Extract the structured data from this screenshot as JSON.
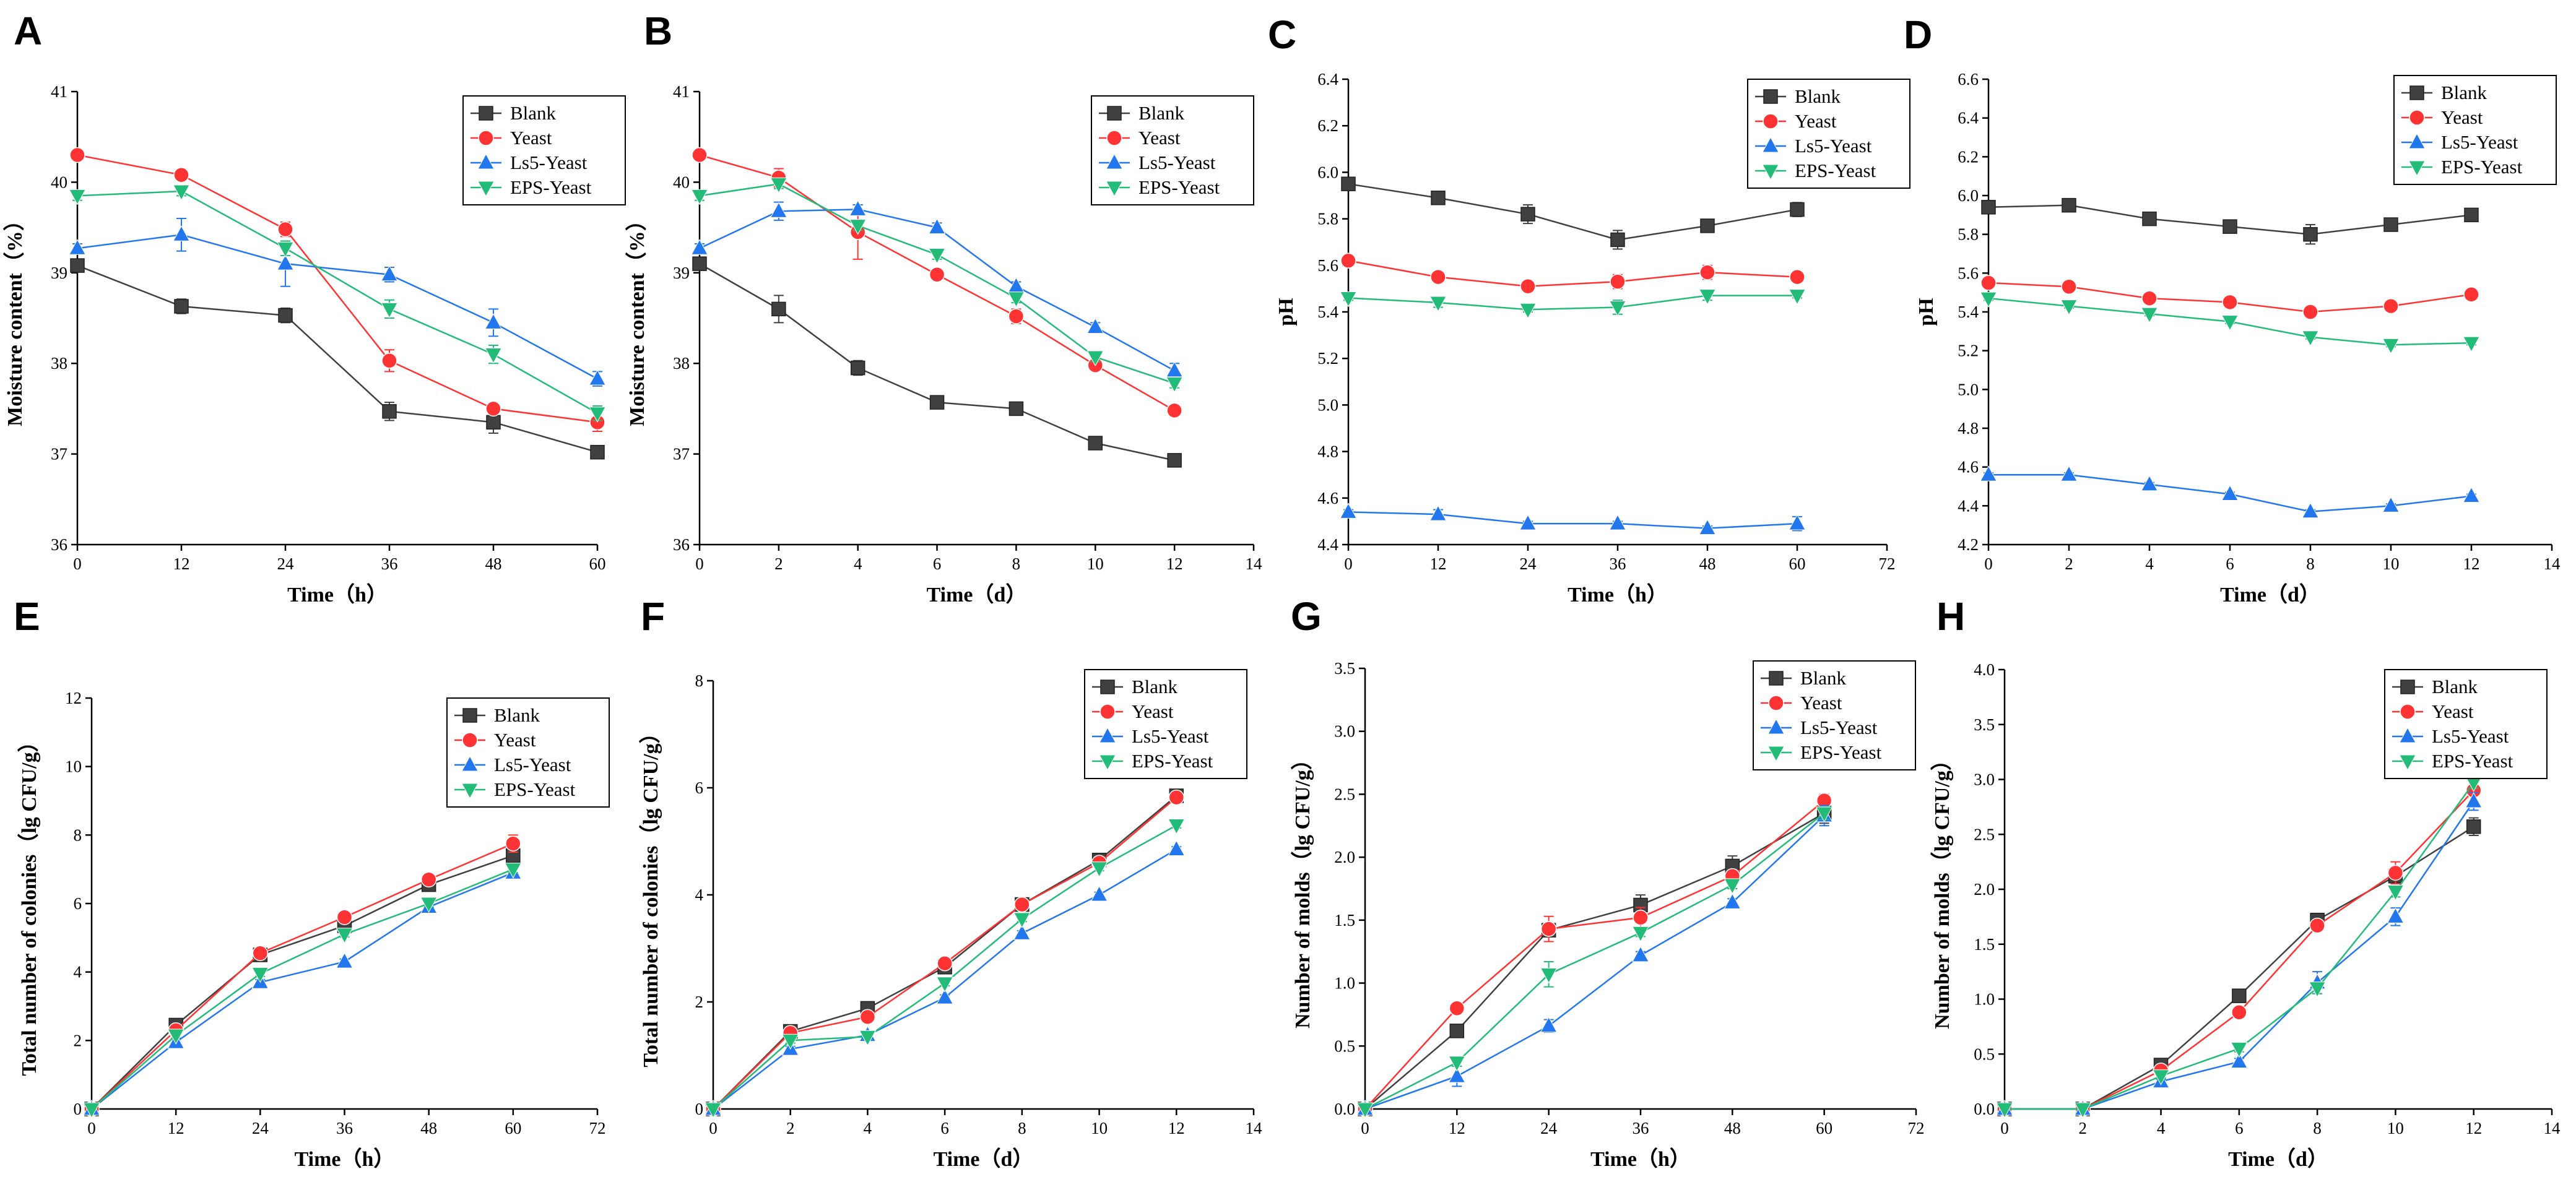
{
  "colors": {
    "Blank": "#404040",
    "Yeast": "#ff3333",
    "Ls5-Yeast": "#2277ee",
    "EPS-Yeast": "#22bb77"
  },
  "marker_shapes": {
    "Blank": "square",
    "Yeast": "circle",
    "Ls5-Yeast": "triangle-up",
    "EPS-Yeast": "triangle-down"
  },
  "chart_data": [
    {
      "panel": "A",
      "type": "line",
      "legend_position": "top-right",
      "xlabel": "Time（h）",
      "ylabel": "Moisture content（%）",
      "xlim": [
        0,
        60
      ],
      "ylim": [
        36,
        41
      ],
      "xticks": [
        0,
        12,
        24,
        36,
        48,
        60
      ],
      "yticks": [
        36,
        37,
        38,
        39,
        40,
        41
      ],
      "x": [
        0,
        12,
        24,
        36,
        48,
        60
      ],
      "series": [
        {
          "name": "Blank",
          "values": [
            39.08,
            38.63,
            38.53,
            37.47,
            37.35,
            37.02
          ],
          "errors": [
            0.05,
            0.08,
            0.08,
            0.1,
            0.12,
            0.04
          ]
        },
        {
          "name": "Yeast",
          "values": [
            40.3,
            40.08,
            39.48,
            38.03,
            37.5,
            37.35
          ],
          "errors": [
            0.05,
            0.05,
            0.08,
            0.12,
            0.05,
            0.1
          ]
        },
        {
          "name": "Ls5-Yeast",
          "values": [
            39.27,
            39.42,
            39.1,
            38.98,
            38.45,
            37.83
          ],
          "errors": [
            0.05,
            0.18,
            0.25,
            0.08,
            0.15,
            0.08
          ]
        },
        {
          "name": "EPS-Yeast",
          "values": [
            39.85,
            39.9,
            39.27,
            38.6,
            38.1,
            37.45
          ],
          "errors": [
            0.05,
            0.05,
            0.08,
            0.1,
            0.1,
            0.08
          ]
        }
      ]
    },
    {
      "panel": "B",
      "type": "line",
      "legend_position": "top-right",
      "xlabel": "Time（d）",
      "ylabel": "Moisture content（%）",
      "xlim": [
        0,
        14
      ],
      "ylim": [
        36,
        41
      ],
      "xticks": [
        0,
        2,
        4,
        6,
        8,
        10,
        12,
        14
      ],
      "yticks": [
        36,
        37,
        38,
        39,
        40,
        41
      ],
      "x": [
        0,
        2,
        4,
        6,
        8,
        10,
        12
      ],
      "series": [
        {
          "name": "Blank",
          "values": [
            39.1,
            38.6,
            37.95,
            37.57,
            37.5,
            37.12,
            36.93
          ],
          "errors": [
            0.05,
            0.15,
            0.08,
            0.05,
            0.03,
            0.03,
            0.03
          ]
        },
        {
          "name": "Yeast",
          "values": [
            40.3,
            40.05,
            39.45,
            38.98,
            38.52,
            37.98,
            37.48
          ],
          "errors": [
            0.05,
            0.1,
            0.3,
            0.05,
            0.08,
            0.05,
            0.03
          ]
        },
        {
          "name": "Ls5-Yeast",
          "values": [
            39.27,
            39.68,
            39.7,
            39.5,
            38.85,
            38.4,
            37.92
          ],
          "errors": [
            0.05,
            0.1,
            0.05,
            0.05,
            0.05,
            0.05,
            0.08
          ]
        },
        {
          "name": "EPS-Yeast",
          "values": [
            39.85,
            39.98,
            39.52,
            39.2,
            38.72,
            38.07,
            37.78
          ],
          "errors": [
            0.05,
            0.05,
            0.05,
            0.05,
            0.05,
            0.05,
            0.05
          ]
        }
      ]
    },
    {
      "panel": "C",
      "type": "line",
      "legend_position": "top-right",
      "xlabel": "Time（h）",
      "ylabel": "pH",
      "xlim": [
        0,
        72
      ],
      "ylim": [
        4.4,
        6.4
      ],
      "xticks": [
        0,
        12,
        24,
        36,
        48,
        60,
        72
      ],
      "yticks": [
        4.4,
        4.6,
        4.8,
        5.0,
        5.2,
        5.4,
        5.6,
        5.8,
        6.0,
        6.2,
        6.4
      ],
      "x": [
        0,
        12,
        24,
        36,
        48,
        60
      ],
      "series": [
        {
          "name": "Blank",
          "values": [
            5.95,
            5.89,
            5.82,
            5.71,
            5.77,
            5.84
          ],
          "errors": [
            0.01,
            0.02,
            0.04,
            0.04,
            0.01,
            0.03
          ]
        },
        {
          "name": "Yeast",
          "values": [
            5.62,
            5.55,
            5.51,
            5.53,
            5.57,
            5.55
          ],
          "errors": [
            0.01,
            0.02,
            0.02,
            0.03,
            0.03,
            0.01
          ]
        },
        {
          "name": "Ls5-Yeast",
          "values": [
            4.54,
            4.53,
            4.49,
            4.49,
            4.47,
            4.49
          ],
          "errors": [
            0.01,
            0.02,
            0.01,
            0.01,
            0.01,
            0.03
          ]
        },
        {
          "name": "EPS-Yeast",
          "values": [
            5.46,
            5.44,
            5.41,
            5.42,
            5.47,
            5.47
          ],
          "errors": [
            0.01,
            0.02,
            0.01,
            0.03,
            0.02,
            0.01
          ]
        }
      ]
    },
    {
      "panel": "D",
      "type": "line",
      "legend_position": "top-right",
      "xlabel": "Time（d）",
      "ylabel": "pH",
      "xlim": [
        0,
        14
      ],
      "ylim": [
        4.2,
        6.6
      ],
      "xticks": [
        0,
        2,
        4,
        6,
        8,
        10,
        12,
        14
      ],
      "yticks": [
        4.2,
        4.4,
        4.6,
        4.8,
        5.0,
        5.2,
        5.4,
        5.6,
        5.8,
        6.0,
        6.2,
        6.4,
        6.6
      ],
      "x": [
        0,
        2,
        4,
        6,
        8,
        10,
        12
      ],
      "series": [
        {
          "name": "Blank",
          "values": [
            5.94,
            5.95,
            5.88,
            5.84,
            5.8,
            5.85,
            5.9
          ],
          "errors": [
            0.01,
            0.03,
            0.02,
            0.03,
            0.05,
            0.01,
            0.01
          ]
        },
        {
          "name": "Yeast",
          "values": [
            5.55,
            5.53,
            5.47,
            5.45,
            5.4,
            5.43,
            5.49
          ],
          "errors": [
            0.01,
            0.01,
            0.01,
            0.02,
            0.01,
            0.01,
            0.02
          ]
        },
        {
          "name": "Ls5-Yeast",
          "values": [
            4.56,
            4.56,
            4.51,
            4.46,
            4.37,
            4.4,
            4.45
          ],
          "errors": [
            0.01,
            0.01,
            0.01,
            0.01,
            0.01,
            0.01,
            0.01
          ]
        },
        {
          "name": "EPS-Yeast",
          "values": [
            5.47,
            5.43,
            5.39,
            5.35,
            5.27,
            5.23,
            5.24
          ],
          "errors": [
            0.01,
            0.01,
            0.01,
            0.01,
            0.01,
            0.01,
            0.01
          ]
        }
      ]
    },
    {
      "panel": "E",
      "type": "line",
      "legend_position": "top-right",
      "xlabel": "Time（h）",
      "ylabel": "Total number of colonies（lg CFU/g）",
      "xlim": [
        0,
        72
      ],
      "ylim": [
        0,
        12
      ],
      "xticks": [
        0,
        12,
        24,
        36,
        48,
        60,
        72
      ],
      "yticks": [
        0,
        2,
        4,
        6,
        8,
        10,
        12
      ],
      "x": [
        0,
        12,
        24,
        36,
        48,
        60
      ],
      "series": [
        {
          "name": "Blank",
          "values": [
            0,
            2.45,
            4.5,
            5.35,
            6.55,
            7.4
          ],
          "errors": [
            0,
            0.08,
            0.1,
            0.1,
            0.1,
            0.15
          ]
        },
        {
          "name": "Yeast",
          "values": [
            0,
            2.3,
            4.55,
            5.6,
            6.7,
            7.75
          ],
          "errors": [
            0,
            0.08,
            0.1,
            0.1,
            0.1,
            0.25
          ]
        },
        {
          "name": "Ls5-Yeast",
          "values": [
            0,
            1.95,
            3.7,
            4.3,
            5.9,
            6.9
          ],
          "errors": [
            0,
            0.08,
            0.08,
            0.08,
            0.1,
            0.1
          ]
        },
        {
          "name": "EPS-Yeast",
          "values": [
            0,
            2.15,
            3.95,
            5.1,
            6.0,
            7.0
          ],
          "errors": [
            0,
            0.08,
            0.08,
            0.08,
            0.1,
            0.1
          ]
        }
      ]
    },
    {
      "panel": "F",
      "type": "line",
      "legend_position": "top-right",
      "xlabel": "Time（d）",
      "ylabel": "Total number of colonies（lg CFU/g）",
      "xlim": [
        0,
        14
      ],
      "ylim": [
        0,
        8
      ],
      "xticks": [
        0,
        2,
        4,
        6,
        8,
        10,
        12,
        14
      ],
      "yticks": [
        0,
        2,
        4,
        6,
        8
      ],
      "x": [
        0,
        2,
        4,
        6,
        8,
        10,
        12
      ],
      "series": [
        {
          "name": "Blank",
          "values": [
            0,
            1.45,
            1.88,
            2.65,
            3.82,
            4.65,
            5.85
          ],
          "errors": [
            0,
            0.05,
            0.05,
            0.05,
            0.05,
            0.05,
            0.08
          ]
        },
        {
          "name": "Yeast",
          "values": [
            0,
            1.42,
            1.72,
            2.72,
            3.82,
            4.6,
            5.82
          ],
          "errors": [
            0,
            0.05,
            0.05,
            0.05,
            0.05,
            0.05,
            0.08
          ]
        },
        {
          "name": "Ls5-Yeast",
          "values": [
            0,
            1.12,
            1.38,
            2.08,
            3.28,
            4.0,
            4.85
          ],
          "errors": [
            0,
            0.05,
            0.05,
            0.05,
            0.05,
            0.05,
            0.05
          ]
        },
        {
          "name": "EPS-Yeast",
          "values": [
            0,
            1.28,
            1.35,
            2.35,
            3.55,
            4.5,
            5.3
          ],
          "errors": [
            0,
            0.05,
            0.05,
            0.05,
            0.05,
            0.05,
            0.05
          ]
        }
      ]
    },
    {
      "panel": "G",
      "type": "line",
      "legend_position": "top-right",
      "xlabel": "Time（h）",
      "ylabel": "Number of molds（lg CFU/g）",
      "xlim": [
        0,
        72
      ],
      "ylim": [
        0,
        3.5
      ],
      "xticks": [
        0,
        12,
        24,
        36,
        48,
        60,
        72
      ],
      "yticks": [
        0.0,
        0.5,
        1.0,
        1.5,
        2.0,
        2.5,
        3.0,
        3.5
      ],
      "x": [
        0,
        12,
        24,
        36,
        48,
        60
      ],
      "series": [
        {
          "name": "Blank",
          "values": [
            0,
            0.62,
            1.42,
            1.62,
            1.93,
            2.35
          ],
          "errors": [
            0,
            0.03,
            0.05,
            0.08,
            0.08,
            0.08
          ]
        },
        {
          "name": "Yeast",
          "values": [
            0,
            0.8,
            1.43,
            1.52,
            1.85,
            2.45
          ],
          "errors": [
            0,
            0.03,
            0.1,
            0.08,
            0.05,
            0.05
          ]
        },
        {
          "name": "Ls5-Yeast",
          "values": [
            0,
            0.26,
            0.66,
            1.22,
            1.64,
            2.33
          ],
          "errors": [
            0,
            0.08,
            0.05,
            0.03,
            0.03,
            0.08
          ]
        },
        {
          "name": "EPS-Yeast",
          "values": [
            0,
            0.37,
            1.07,
            1.4,
            1.78,
            2.35
          ],
          "errors": [
            0,
            0.03,
            0.1,
            0.03,
            0.03,
            0.05
          ]
        }
      ]
    },
    {
      "panel": "H",
      "type": "line",
      "legend_position": "top-right",
      "xlabel": "Time（d）",
      "ylabel": "Number of molds（lg CFU/g）",
      "xlim": [
        0,
        14
      ],
      "ylim": [
        0,
        4.0
      ],
      "xticks": [
        0,
        2,
        4,
        6,
        8,
        10,
        12,
        14
      ],
      "yticks": [
        0.0,
        0.5,
        1.0,
        1.5,
        2.0,
        2.5,
        3.0,
        3.5,
        4.0
      ],
      "x": [
        0,
        2,
        4,
        6,
        8,
        10,
        12
      ],
      "series": [
        {
          "name": "Blank",
          "values": [
            0,
            0,
            0.4,
            1.03,
            1.72,
            2.12,
            2.57
          ],
          "errors": [
            0,
            0,
            0.03,
            0.03,
            0.05,
            0.05,
            0.08
          ]
        },
        {
          "name": "Yeast",
          "values": [
            0,
            0,
            0.35,
            0.88,
            1.67,
            2.15,
            2.9
          ],
          "errors": [
            0,
            0,
            0.03,
            0.03,
            0.05,
            0.1,
            0.05
          ]
        },
        {
          "name": "Ls5-Yeast",
          "values": [
            0,
            0,
            0.25,
            0.43,
            1.15,
            1.75,
            2.8
          ],
          "errors": [
            0,
            0,
            0.03,
            0.03,
            0.1,
            0.08,
            0.08
          ]
        },
        {
          "name": "EPS-Yeast",
          "values": [
            0,
            0,
            0.3,
            0.55,
            1.1,
            1.98,
            2.97
          ],
          "errors": [
            0,
            0,
            0.03,
            0.03,
            0.05,
            0.05,
            0.05
          ]
        }
      ]
    }
  ]
}
